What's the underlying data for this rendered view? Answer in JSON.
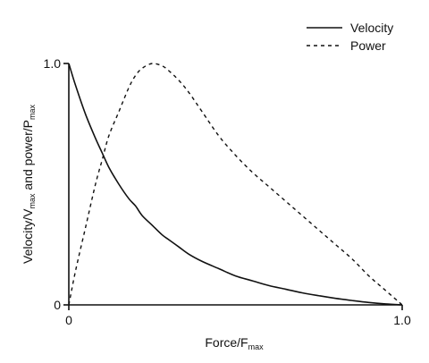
{
  "chart_data": {
    "type": "line",
    "title": "",
    "xlabel": {
      "main": "Force/F",
      "sub": "max"
    },
    "ylabel": {
      "part1": "Velocity/V",
      "sub1": "max",
      "part2": " and power/P",
      "sub2": "max"
    },
    "xlim": [
      0,
      1.0
    ],
    "ylim": [
      0,
      1.0
    ],
    "x_ticks": [
      {
        "value": 0,
        "label": "0"
      },
      {
        "value": 1.0,
        "label": "1.0"
      }
    ],
    "y_ticks": [
      {
        "value": 0,
        "label": "0"
      },
      {
        "value": 1.0,
        "label": "1.0"
      }
    ],
    "grid": false,
    "legend_position": "top-right",
    "x": [
      0,
      0.02,
      0.05,
      0.08,
      0.1,
      0.12,
      0.15,
      0.18,
      0.2,
      0.22,
      0.25,
      0.28,
      0.3,
      0.33,
      0.36,
      0.4,
      0.45,
      0.5,
      0.55,
      0.6,
      0.65,
      0.7,
      0.75,
      0.8,
      0.85,
      0.9,
      0.95,
      1.0
    ],
    "series": [
      {
        "name": "Velocity",
        "style": "solid",
        "color": "#111111",
        "values": [
          1.0,
          0.91,
          0.79,
          0.69,
          0.63,
          0.57,
          0.5,
          0.44,
          0.41,
          0.37,
          0.33,
          0.29,
          0.27,
          0.24,
          0.21,
          0.18,
          0.15,
          0.12,
          0.1,
          0.08,
          0.065,
          0.05,
          0.038,
          0.027,
          0.018,
          0.01,
          0.004,
          0.0
        ]
      },
      {
        "name": "Power",
        "style": "dashed",
        "color": "#111111",
        "values": [
          0.0,
          0.14,
          0.32,
          0.5,
          0.6,
          0.7,
          0.8,
          0.9,
          0.95,
          0.98,
          1.0,
          0.99,
          0.97,
          0.93,
          0.88,
          0.8,
          0.7,
          0.62,
          0.55,
          0.49,
          0.43,
          0.37,
          0.31,
          0.25,
          0.19,
          0.12,
          0.06,
          0.0
        ]
      }
    ]
  }
}
